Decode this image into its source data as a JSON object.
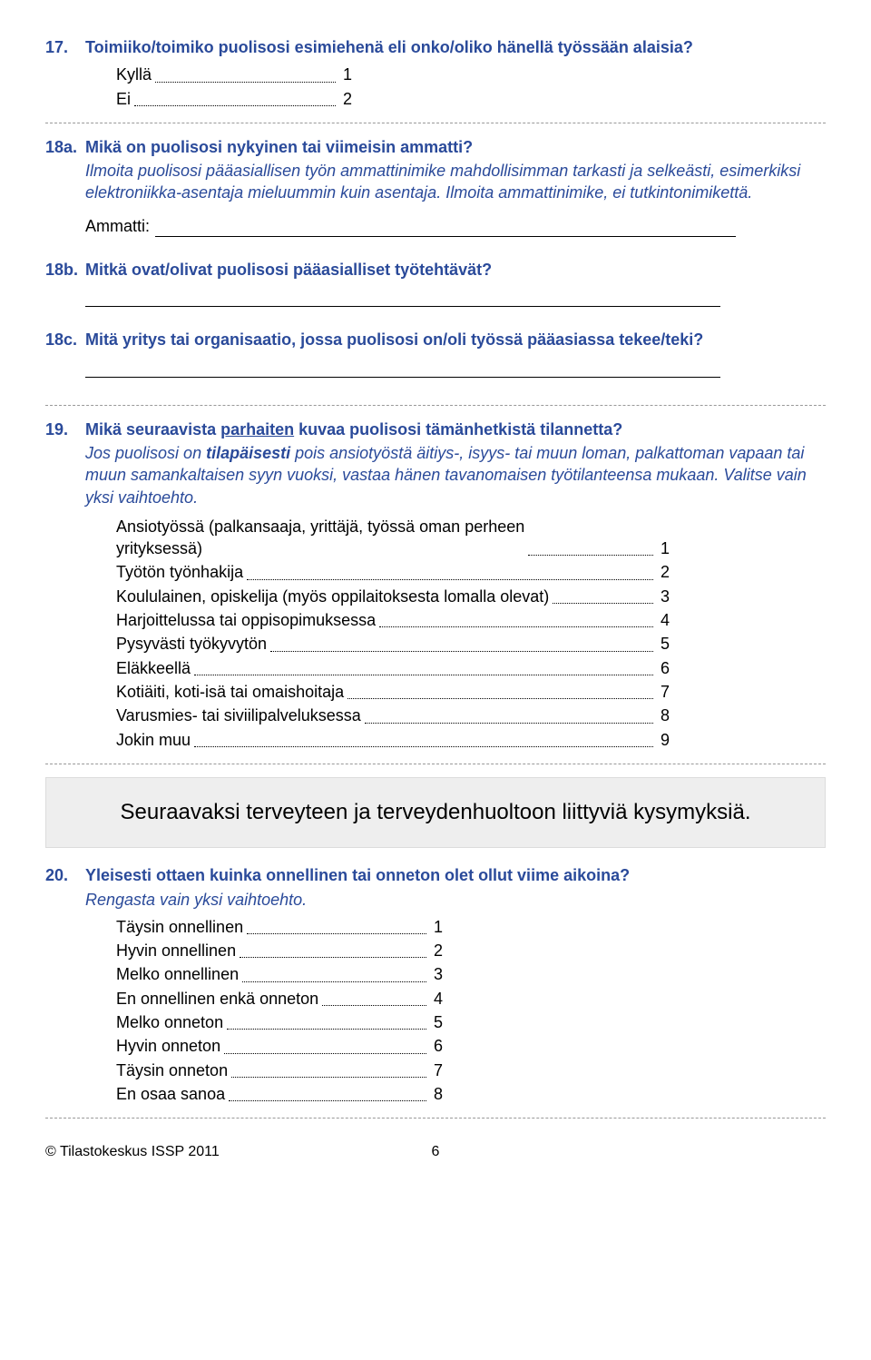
{
  "q17": {
    "num": "17.",
    "title": "Toimiiko/toimiko puolisosi esimiehenä eli onko/oliko hänellä työssään alaisia?",
    "options": [
      {
        "label": "Kyllä",
        "value": "1"
      },
      {
        "label": "Ei",
        "value": "2"
      }
    ]
  },
  "q18a": {
    "num": "18a.",
    "title": "Mikä on puolisosi nykyinen tai viimeisin ammatti?",
    "instr": "Ilmoita puolisosi pääasiallisen työn ammattinimike mahdollisimman tarkasti ja selkeästi, esimerkiksi elektroniikka-asentaja mieluummin kuin asentaja. Ilmoita ammattinimike, ei tutkintonimikettä.",
    "field_label": "Ammatti:"
  },
  "q18b": {
    "num": "18b.",
    "title": "Mitkä ovat/olivat puolisosi pääasialliset työtehtävät?"
  },
  "q18c": {
    "num": "18c.",
    "title": "Mitä yritys tai organisaatio, jossa puolisosi on/oli työssä pääasiassa tekee/teki?"
  },
  "q19": {
    "num": "19.",
    "title_pre": "Mikä seuraavista ",
    "title_u": "parhaiten",
    "title_post": " kuvaa puolisosi tämänhetkistä tilannetta?",
    "instr": "Jos puolisosi on tilapäisesti pois ansiotyöstä äitiys-, isyys- tai muun loman, palkattoman vapaan tai muun samankaltaisen syyn vuoksi, vastaa hänen tavanomaisen työtilanteensa mukaan. Valitse vain yksi vaihtoehto.",
    "instr_bold": "tilapäisesti",
    "options": [
      {
        "label_lines": [
          "Ansiotyössä (palkansaaja, yrittäjä, työssä oman perheen",
          "yrityksessä)"
        ],
        "value": "1"
      },
      {
        "label": "Työtön työnhakija",
        "value": "2"
      },
      {
        "label": "Koululainen, opiskelija (myös oppilaitoksesta lomalla olevat)",
        "value": "3"
      },
      {
        "label": "Harjoittelussa tai oppisopimuksessa",
        "value": "4"
      },
      {
        "label": "Pysyvästi työkyvytön",
        "value": "5"
      },
      {
        "label": "Eläkkeellä",
        "value": "6"
      },
      {
        "label": "Kotiäiti, koti-isä tai omaishoitaja",
        "value": "7"
      },
      {
        "label": "Varusmies- tai siviilipalveluksessa",
        "value": "8"
      },
      {
        "label": "Jokin muu",
        "value": "9"
      }
    ]
  },
  "section_box": "Seuraavaksi terveyteen ja terveydenhuoltoon liittyviä kysymyksiä.",
  "q20": {
    "num": "20.",
    "title": "Yleisesti ottaen kuinka onnellinen tai onneton olet ollut viime aikoina?",
    "instr": "Rengasta vain yksi vaihtoehto.",
    "options": [
      {
        "label": "Täysin onnellinen",
        "value": "1"
      },
      {
        "label": "Hyvin onnellinen",
        "value": "2"
      },
      {
        "label": "Melko onnellinen",
        "value": "3"
      },
      {
        "label": "En onnellinen enkä onneton",
        "value": "4"
      },
      {
        "label": "Melko onneton",
        "value": "5"
      },
      {
        "label": "Hyvin onneton",
        "value": "6"
      },
      {
        "label": "Täysin onneton",
        "value": "7"
      },
      {
        "label": "En osaa sanoa",
        "value": "8"
      }
    ]
  },
  "footer": {
    "left": "© Tilastokeskus ISSP 2011",
    "page": "6"
  }
}
